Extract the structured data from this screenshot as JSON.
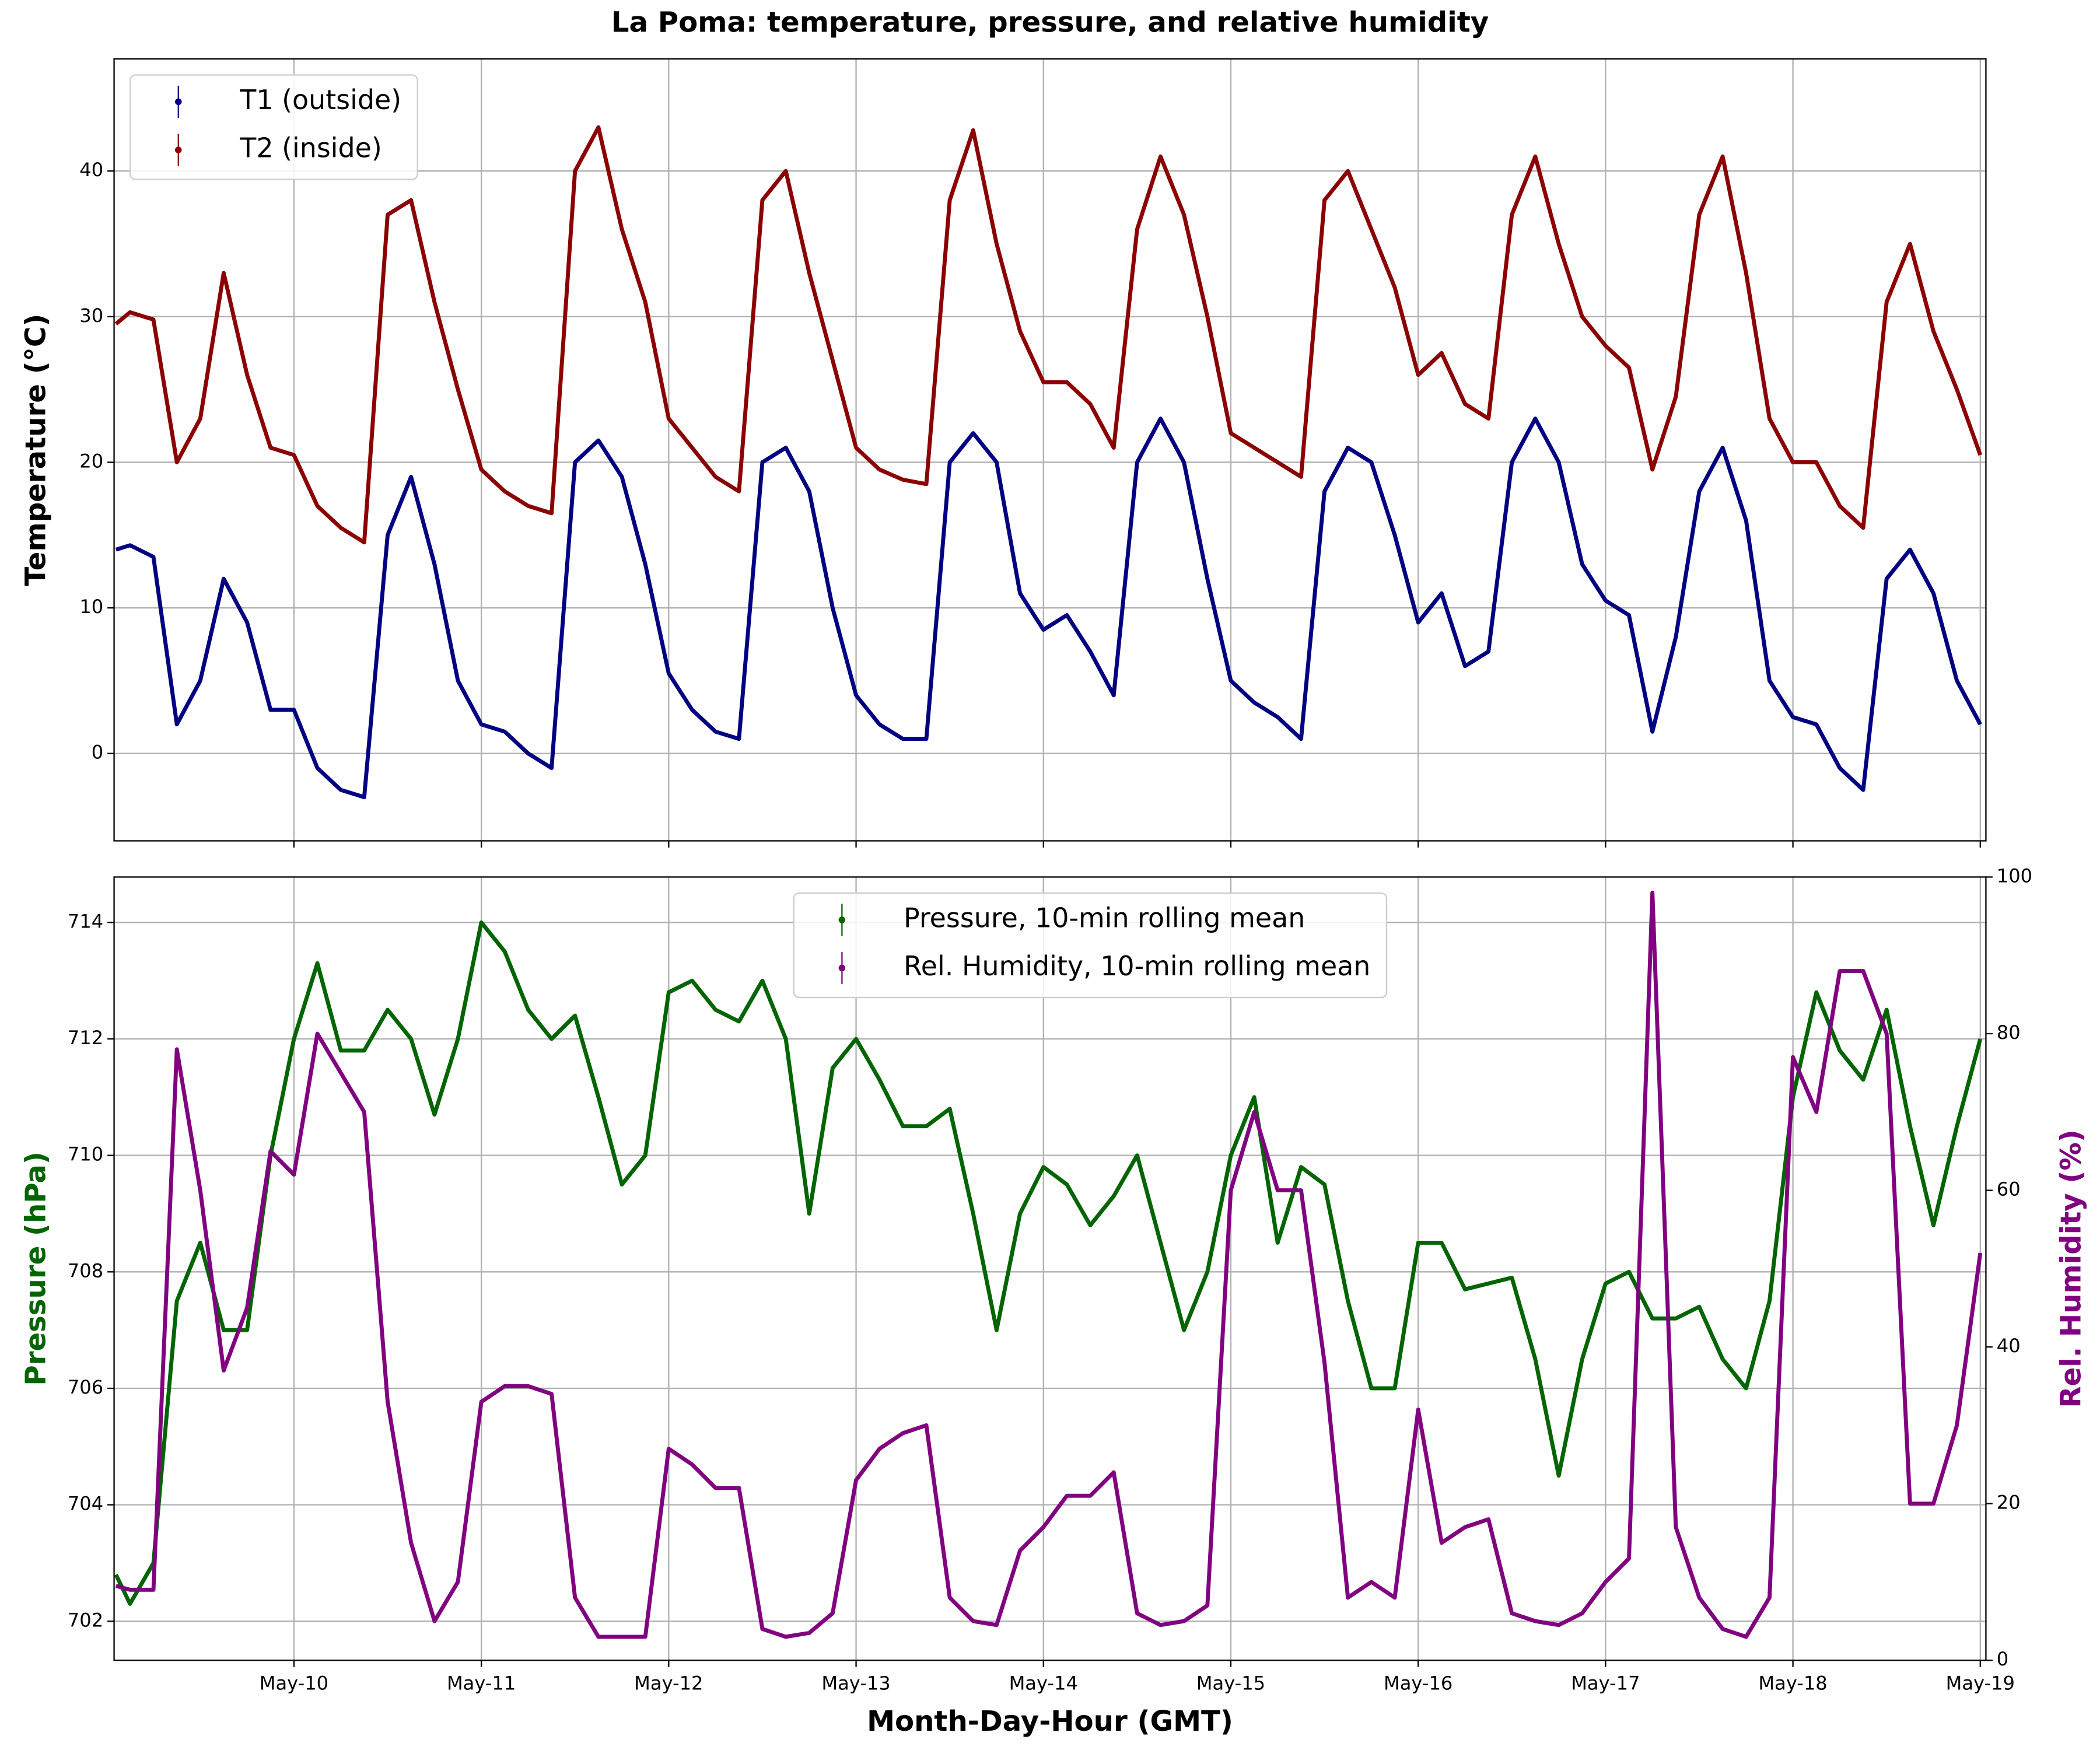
{
  "chart_data": [
    {
      "type": "line",
      "title": "La Poma: temperature, pressure, and relative humidity",
      "ylabel": "Temperature (°C)",
      "x": [
        9.05,
        9.125,
        9.25,
        9.375,
        9.5,
        9.625,
        9.75,
        9.875,
        10,
        10.125,
        10.25,
        10.375,
        10.5,
        10.625,
        10.75,
        10.875,
        11,
        11.125,
        11.25,
        11.375,
        11.5,
        11.625,
        11.75,
        11.875,
        12,
        12.125,
        12.25,
        12.375,
        12.5,
        12.625,
        12.75,
        12.875,
        13,
        13.125,
        13.25,
        13.375,
        13.5,
        13.625,
        13.75,
        13.875,
        14,
        14.125,
        14.25,
        14.375,
        14.5,
        14.625,
        14.75,
        14.875,
        15,
        15.125,
        15.25,
        15.375,
        15.5,
        15.625,
        15.75,
        15.875,
        16,
        16.125,
        16.25,
        16.375,
        16.5,
        16.625,
        16.75,
        16.875,
        17,
        17.125,
        17.25,
        17.375,
        17.5,
        17.625,
        17.75,
        17.875,
        18,
        18.125,
        18.25,
        18.375,
        18.5,
        18.625,
        18.75,
        18.875,
        19
      ],
      "xlim": [
        9.04,
        19.03
      ],
      "ylim": [
        -6,
        47.7
      ],
      "yticks": [
        0,
        10,
        20,
        30,
        40
      ],
      "grid": true,
      "legend": "upper left",
      "series": [
        {
          "name": "T1 (outside)",
          "color": "#000080",
          "values": [
            14,
            14.3,
            13.5,
            2,
            5,
            12,
            9,
            3,
            3,
            -1,
            -2.5,
            -3,
            15,
            19,
            13,
            5,
            2,
            1.5,
            0,
            -1,
            20,
            21.5,
            19,
            13,
            5.5,
            3,
            1.5,
            1,
            20,
            21,
            18,
            10,
            4,
            2,
            1,
            1,
            20,
            22,
            20,
            11,
            8.5,
            9.5,
            7,
            4,
            20,
            23,
            20,
            12,
            5,
            3.5,
            2.5,
            1,
            18,
            21,
            20,
            15,
            9,
            11,
            6,
            7,
            20,
            23,
            20,
            13,
            10.5,
            9.5,
            1.5,
            8,
            18,
            21,
            16,
            5,
            2.5,
            2,
            -1,
            -2.5,
            12,
            14,
            11,
            5,
            2
          ]
        },
        {
          "name": "T2 (inside)",
          "color": "#8b0000",
          "values": [
            29.5,
            30.3,
            29.8,
            20,
            23,
            33,
            26,
            21,
            20.5,
            17,
            15.5,
            14.5,
            37,
            38,
            31,
            25,
            19.5,
            18,
            17,
            16.5,
            40,
            43,
            36,
            31,
            23,
            21,
            19,
            18,
            38,
            40,
            33,
            27,
            21,
            19.5,
            18.8,
            18.5,
            38,
            42.8,
            35,
            29,
            25.5,
            25.5,
            24,
            21,
            36,
            41,
            37,
            30,
            22,
            21,
            20,
            19,
            38,
            40,
            36,
            32,
            26,
            27.5,
            24,
            23,
            37,
            41,
            35,
            30,
            28,
            26.5,
            19.5,
            24.5,
            37,
            41,
            33,
            23,
            20,
            20,
            17,
            15.5,
            31,
            35,
            29,
            25,
            20.5
          ]
        }
      ]
    },
    {
      "type": "line",
      "xlabel": "Month-Day-Hour (GMT)",
      "ylabel": "Pressure (hPa)",
      "y2label": "Rel. Humidity (%)",
      "x": [
        9.05,
        9.125,
        9.25,
        9.375,
        9.5,
        9.625,
        9.75,
        9.875,
        10,
        10.125,
        10.25,
        10.375,
        10.5,
        10.625,
        10.75,
        10.875,
        11,
        11.125,
        11.25,
        11.375,
        11.5,
        11.625,
        11.75,
        11.875,
        12,
        12.125,
        12.25,
        12.375,
        12.5,
        12.625,
        12.75,
        12.875,
        13,
        13.125,
        13.25,
        13.375,
        13.5,
        13.625,
        13.75,
        13.875,
        14,
        14.125,
        14.25,
        14.375,
        14.5,
        14.625,
        14.75,
        14.875,
        15,
        15.125,
        15.25,
        15.375,
        15.5,
        15.625,
        15.75,
        15.875,
        16,
        16.125,
        16.25,
        16.375,
        16.5,
        16.625,
        16.75,
        16.875,
        17,
        17.125,
        17.25,
        17.375,
        17.5,
        17.625,
        17.75,
        17.875,
        18,
        18.125,
        18.25,
        18.375,
        18.5,
        18.625,
        18.75,
        18.875,
        19
      ],
      "xlim": [
        9.04,
        19.03
      ],
      "xticks": [
        {
          "value": 10,
          "label": "May-10"
        },
        {
          "value": 11,
          "label": "May-11"
        },
        {
          "value": 12,
          "label": "May-12"
        },
        {
          "value": 13,
          "label": "May-13"
        },
        {
          "value": 14,
          "label": "May-14"
        },
        {
          "value": 15,
          "label": "May-15"
        },
        {
          "value": 16,
          "label": "May-16"
        },
        {
          "value": 17,
          "label": "May-17"
        },
        {
          "value": 18,
          "label": "May-18"
        },
        {
          "value": 19,
          "label": "May-19"
        }
      ],
      "ylim": [
        701.33,
        714.78
      ],
      "yticks": [
        702,
        704,
        706,
        708,
        710,
        712,
        714
      ],
      "y2lim": [
        0,
        100
      ],
      "y2ticks": [
        0,
        20,
        40,
        60,
        80,
        100
      ],
      "grid": true,
      "legend": "upper center",
      "series": [
        {
          "name": "Pressure, 10-min rolling mean",
          "color": "#006400",
          "values": [
            702.8,
            702.3,
            703,
            707.5,
            708.5,
            707,
            707,
            710,
            712,
            713.3,
            711.8,
            711.8,
            712.5,
            712,
            710.7,
            712,
            714,
            713.5,
            712.5,
            712,
            712.4,
            711,
            709.5,
            710,
            712.8,
            713,
            712.5,
            712.3,
            713,
            712,
            709,
            711.5,
            712,
            711.3,
            710.5,
            710.5,
            710.8,
            709,
            707,
            709,
            709.8,
            709.5,
            708.8,
            709.3,
            710,
            708.5,
            707,
            708,
            710,
            711,
            708.5,
            709.8,
            709.5,
            707.5,
            706,
            706,
            708.5,
            708.5,
            707.7,
            707.8,
            707.9,
            706.5,
            704.5,
            706.5,
            707.8,
            708,
            707.2,
            707.2,
            707.4,
            706.5,
            706,
            707.5,
            711,
            712.8,
            711.8,
            711.3,
            712.5,
            710.5,
            708.8,
            710.5,
            712
          ]
        },
        {
          "name": "Rel. Humidity, 10-min rolling mean",
          "color": "#800080",
          "axis": "y2",
          "values": [
            9.5,
            9,
            9,
            78,
            60,
            37,
            45,
            65,
            62,
            80,
            75,
            70,
            33,
            15,
            5,
            10,
            33,
            35,
            35,
            34,
            8,
            3,
            3,
            3,
            27,
            25,
            22,
            22,
            4,
            3,
            3.5,
            6,
            23,
            27,
            29,
            30,
            8,
            5,
            4.5,
            14,
            17,
            21,
            21,
            24,
            6,
            4.5,
            5,
            7,
            60,
            70,
            60,
            60,
            38,
            8,
            10,
            8,
            32,
            15,
            17,
            18,
            6,
            5,
            4.5,
            6,
            10,
            13,
            98,
            17,
            8,
            4,
            3,
            8,
            77,
            70,
            88,
            88,
            80,
            20,
            20,
            30,
            52
          ]
        }
      ]
    }
  ]
}
